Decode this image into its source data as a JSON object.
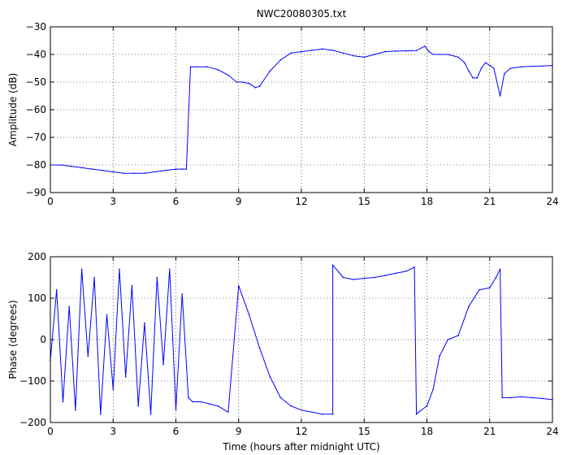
{
  "chart_data": [
    {
      "type": "line",
      "title": "NWC20080305.txt",
      "xlabel": "",
      "ylabel": "Amplitude (dB)",
      "xlim": [
        0,
        24
      ],
      "ylim": [
        -90,
        -30
      ],
      "xticks": [
        0,
        3,
        6,
        9,
        12,
        15,
        18,
        21,
        24
      ],
      "yticks": [
        -30,
        -40,
        -50,
        -60,
        -70,
        -80,
        -90
      ],
      "grid": true,
      "color": "#0000ff",
      "series": [
        {
          "x": [
            0.0,
            0.5,
            1.0,
            1.5,
            2.0,
            2.5,
            3.0,
            3.5,
            4.0,
            4.5,
            5.0,
            5.5,
            6.0,
            6.3,
            6.5,
            6.7,
            7.0,
            7.5,
            8.0,
            8.5,
            8.9,
            9.2,
            9.5,
            9.8,
            10.0,
            10.5,
            11.0,
            11.5,
            12.0,
            12.5,
            13.0,
            13.5,
            14.0,
            14.5,
            15.0,
            15.5,
            16.0,
            16.5,
            17.0,
            17.5,
            17.9,
            18.1,
            18.3,
            18.6,
            19.0,
            19.5,
            19.8,
            20.0,
            20.2,
            20.4,
            20.6,
            20.8,
            21.0,
            21.2,
            21.5,
            21.7,
            22.0,
            22.5,
            23.0,
            23.5,
            24.0
          ],
          "y": [
            -80,
            -80,
            -80.5,
            -81,
            -81.5,
            -82,
            -82.5,
            -83,
            -83,
            -83,
            -82.5,
            -82,
            -81.5,
            -81.5,
            -81.5,
            -44.5,
            -44.5,
            -44.5,
            -45.5,
            -47.5,
            -50,
            -50,
            -50.5,
            -52,
            -51.5,
            -46,
            -42,
            -39.5,
            -39,
            -38.5,
            -38,
            -38.5,
            -39.5,
            -40.5,
            -41,
            -40,
            -39,
            -38.8,
            -38.7,
            -38.6,
            -37,
            -39,
            -40,
            -40,
            -40,
            -41,
            -43,
            -46,
            -48.5,
            -48.5,
            -45,
            -43,
            -44,
            -45,
            -55,
            -47,
            -45,
            -44.5,
            -44.3,
            -44.2,
            -44
          ]
        }
      ]
    },
    {
      "type": "line",
      "title": "",
      "xlabel": "Time (hours after midnight UTC)",
      "ylabel": "Phase (degrees)",
      "xlim": [
        0,
        24
      ],
      "ylim": [
        -200,
        200
      ],
      "xticks": [
        0,
        3,
        6,
        9,
        12,
        15,
        18,
        21,
        24
      ],
      "yticks": [
        200,
        100,
        0,
        -100,
        -200
      ],
      "grid": true,
      "color": "#0000ff",
      "series": [
        {
          "x": [
            0.0,
            0.3,
            0.6,
            0.9,
            1.2,
            1.5,
            1.8,
            2.1,
            2.4,
            2.7,
            3.0,
            3.3,
            3.6,
            3.9,
            4.2,
            4.5,
            4.8,
            5.1,
            5.4,
            5.7,
            6.0,
            6.3,
            6.6,
            6.8,
            7.2,
            7.6,
            8.0,
            8.5,
            9.0,
            9.5,
            10.0,
            10.5,
            11.0,
            11.5,
            12.0,
            12.5,
            13.0,
            13.5,
            13.5,
            14.0,
            14.5,
            15.0,
            15.5,
            16.0,
            16.5,
            17.0,
            17.4,
            17.5,
            17.6,
            18.0,
            18.3,
            18.6,
            19.0,
            19.5,
            20.0,
            20.5,
            21.0,
            21.3,
            21.5,
            21.6,
            22.0,
            22.5,
            23.0,
            23.5,
            24.0
          ],
          "y": [
            -50,
            120,
            -150,
            80,
            -170,
            170,
            -40,
            150,
            -180,
            60,
            -120,
            170,
            -90,
            130,
            -160,
            40,
            -180,
            150,
            -60,
            170,
            -170,
            110,
            -140,
            -150,
            -150,
            -155,
            -160,
            -175,
            130,
            60,
            -20,
            -90,
            -140,
            -160,
            -170,
            -175,
            -180,
            -180,
            180,
            150,
            145,
            148,
            150,
            155,
            160,
            165,
            175,
            -180,
            -175,
            -160,
            -120,
            -40,
            0,
            10,
            80,
            120,
            125,
            150,
            170,
            -140,
            -140,
            -138,
            -140,
            -142,
            -145
          ]
        }
      ]
    }
  ]
}
